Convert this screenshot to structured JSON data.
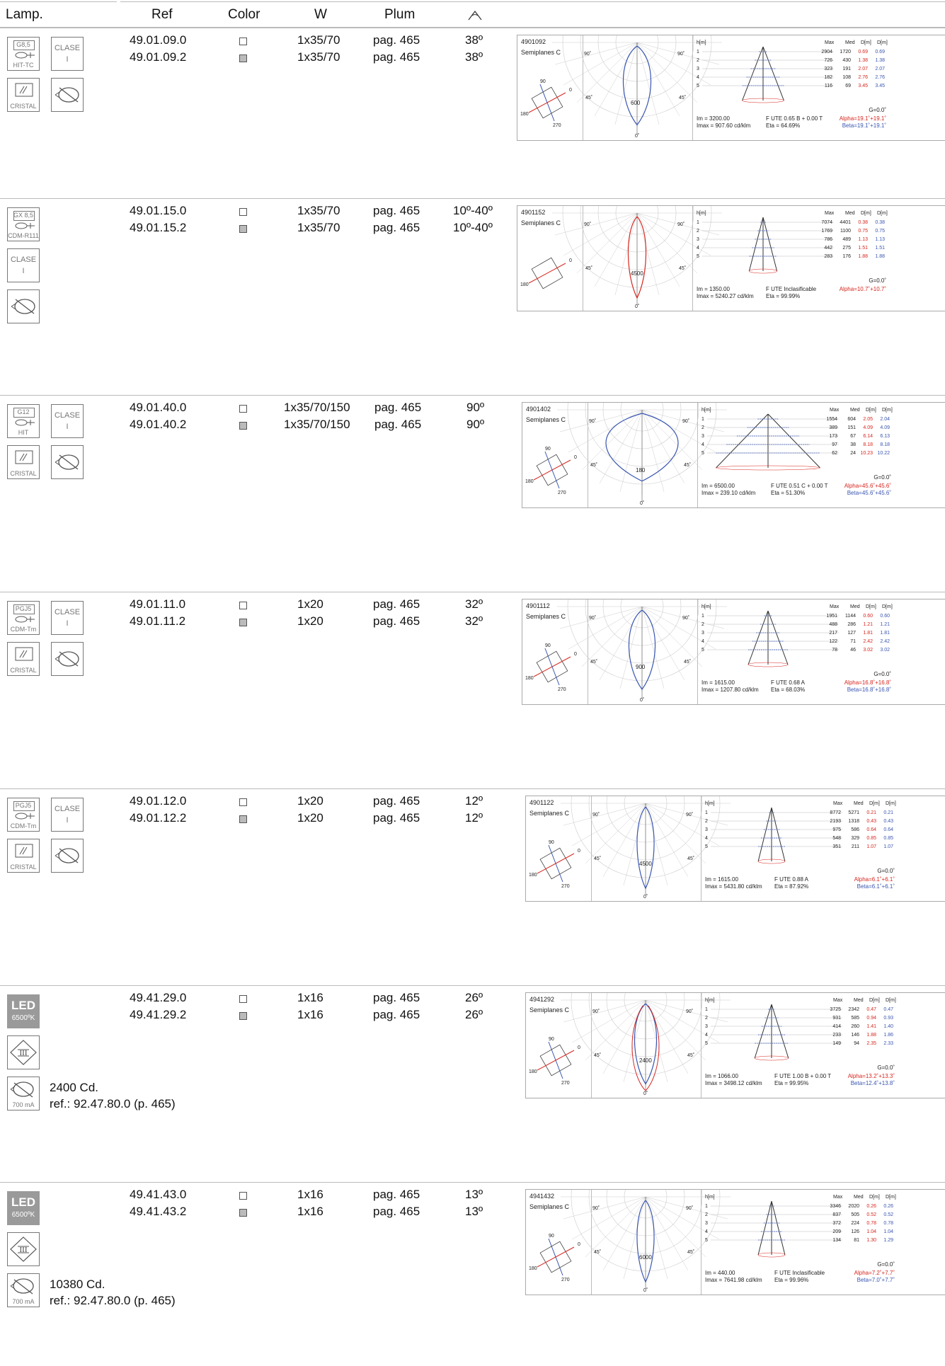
{
  "header": {
    "lamp": "Lamp.",
    "ref": "Ref",
    "color": "Color",
    "w": "W",
    "plum": "Plum",
    "angle_icon": "beam-angle-icon"
  },
  "colors": {
    "red": "#d7261e",
    "blue": "#3a56b0",
    "grey": "#9a9a9a"
  },
  "rows": [
    {
      "lamp_code": "G8,5",
      "lamp_type": "HIT-TC",
      "clase": [
        "CLASE",
        "I"
      ],
      "cristal": "CRISTAL",
      "driver": "",
      "refs": [
        "49.01.09.0",
        "49.01.09.2"
      ],
      "w": [
        "1x35/70",
        "1x35/70"
      ],
      "plum": [
        "pag. 465",
        "pag. 465"
      ],
      "angle": [
        "38º",
        "38º"
      ],
      "note": [
        "",
        ""
      ],
      "photo": {
        "id": "4901092",
        "system": "Semiplanes C",
        "dial": [
          "90",
          "0",
          "180",
          "270"
        ],
        "center": "600",
        "polar_labels": [
          "90˚",
          "90˚",
          "45˚",
          "45˚",
          "0˚"
        ],
        "table_head": [
          "h[m]",
          "Max",
          "Med",
          "D[m]",
          "D[m]"
        ],
        "table": [
          [
            "1",
            "2904",
            "1720",
            "0.69",
            "0.69"
          ],
          [
            "2",
            "726",
            "430",
            "1.38",
            "1.38"
          ],
          [
            "3",
            "323",
            "191",
            "2.07",
            "2.07"
          ],
          [
            "4",
            "182",
            "108",
            "2.76",
            "2.76"
          ],
          [
            "5",
            "116",
            "69",
            "3.45",
            "3.45"
          ]
        ],
        "g": "G=0.0˚",
        "im": "Im = 3200.00",
        "imax": "Imax = 907.60 cd/klm",
        "fute": "F UTE 0.65 B + 0.00 T",
        "eta": "Eta = 64.69%",
        "alpha": "Alpha=19.1˚+19.1˚",
        "beta": "Beta=19.1˚+19.1˚"
      }
    },
    {
      "lamp_code": "GX 8,5",
      "lamp_type": "CDM-R111",
      "clase": [
        "CLASE",
        "I"
      ],
      "cristal": "",
      "driver": "",
      "refs": [
        "49.01.15.0",
        "49.01.15.2"
      ],
      "w": [
        "1x35/70",
        "1x35/70"
      ],
      "plum": [
        "pag. 465",
        "pag. 465"
      ],
      "angle": [
        "10º-40º",
        "10º-40º"
      ],
      "note": [
        "",
        ""
      ],
      "photo": {
        "id": "4901152",
        "system": "Semiplanes C",
        "dial": [
          "",
          "0",
          "180",
          ""
        ],
        "center": "4500",
        "polar_labels": [
          "90˚",
          "90˚",
          "45˚",
          "45˚",
          "0˚"
        ],
        "table_head": [
          "h[m]",
          "Max",
          "Med",
          "D[m]",
          "D[m]"
        ],
        "table": [
          [
            "1",
            "7074",
            "4401",
            "0.38",
            "0.38"
          ],
          [
            "2",
            "1769",
            "1100",
            "0.75",
            "0.75"
          ],
          [
            "3",
            "786",
            "489",
            "1.13",
            "1.13"
          ],
          [
            "4",
            "442",
            "275",
            "1.51",
            "1.51"
          ],
          [
            "5",
            "283",
            "176",
            "1.88",
            "1.88"
          ]
        ],
        "g": "G=0.0˚",
        "im": "Im = 1350.00",
        "imax": "Imax = 5240.27 cd/klm",
        "fute": "F UTE Inclasificable",
        "eta": "Eta = 99.99%",
        "alpha": "Alpha=10.7˚+10.7˚",
        "beta": ""
      }
    },
    {
      "lamp_code": "G12",
      "lamp_type": "HIT",
      "clase": [
        "CLASE",
        "I"
      ],
      "cristal": "CRISTAL",
      "driver": "",
      "refs": [
        "49.01.40.0",
        "49.01.40.2"
      ],
      "w": [
        "1x35/70/150",
        "1x35/70/150"
      ],
      "plum": [
        "pag. 465",
        "pag. 465"
      ],
      "angle": [
        "90º",
        "90º"
      ],
      "note": [
        "",
        ""
      ],
      "photo": {
        "id": "4901402",
        "system": "Semiplanes C",
        "dial": [
          "90",
          "0",
          "180",
          "270"
        ],
        "center": "180",
        "polar_labels": [
          "90˚",
          "90˚",
          "45˚",
          "45˚",
          "0˚"
        ],
        "table_head": [
          "h[m]",
          "Max",
          "Med",
          "D[m]",
          "D[m]"
        ],
        "table": [
          [
            "1",
            "1554",
            "604",
            "2.05",
            "2.04"
          ],
          [
            "2",
            "389",
            "151",
            "4.09",
            "4.09"
          ],
          [
            "3",
            "173",
            "67",
            "6.14",
            "6.13"
          ],
          [
            "4",
            "97",
            "38",
            "8.18",
            "8.18"
          ],
          [
            "5",
            "62",
            "24",
            "10.23",
            "10.22"
          ]
        ],
        "g": "G=0.0˚",
        "im": "Im = 6500.00",
        "imax": "Imax = 239.10 cd/klm",
        "fute": "F UTE 0.51 C + 0.00 T",
        "eta": "Eta = 51.30%",
        "alpha": "Alpha=45.6˚+45.6˚",
        "beta": "Beta=45.6˚+45.6˚"
      }
    },
    {
      "lamp_code": "PGJ5",
      "lamp_type": "CDM-Tm",
      "clase": [
        "CLASE",
        "I"
      ],
      "cristal": "CRISTAL",
      "driver": "",
      "refs": [
        "49.01.11.0",
        "49.01.11.2"
      ],
      "w": [
        "1x20",
        "1x20"
      ],
      "plum": [
        "pag. 465",
        "pag. 465"
      ],
      "angle": [
        "32º",
        "32º"
      ],
      "note": [
        "",
        ""
      ],
      "photo": {
        "id": "4901112",
        "system": "Semiplanes C",
        "dial": [
          "90",
          "0",
          "180",
          "270"
        ],
        "center": "900",
        "polar_labels": [
          "90˚",
          "90˚",
          "45˚",
          "45˚",
          "0˚"
        ],
        "table_head": [
          "h[m]",
          "Max",
          "Med",
          "D[m]",
          "D[m]"
        ],
        "table": [
          [
            "1",
            "1951",
            "1144",
            "0.60",
            "0.60"
          ],
          [
            "2",
            "488",
            "286",
            "1.21",
            "1.21"
          ],
          [
            "3",
            "217",
            "127",
            "1.81",
            "1.81"
          ],
          [
            "4",
            "122",
            "71",
            "2.42",
            "2.42"
          ],
          [
            "5",
            "78",
            "46",
            "3.02",
            "3.02"
          ]
        ],
        "g": "G=0.0˚",
        "im": "Im = 1615.00",
        "imax": "Imax = 1207.80 cd/klm",
        "fute": "F UTE 0.68 A",
        "eta": "Eta = 68.03%",
        "alpha": "Alpha=16.8˚+16.8˚",
        "beta": "Beta=16.8˚+16.8˚"
      }
    },
    {
      "lamp_code": "PGJ5",
      "lamp_type": "CDM-Tm",
      "clase": [
        "CLASE",
        "I"
      ],
      "cristal": "CRISTAL",
      "driver": "",
      "refs": [
        "49.01.12.0",
        "49.01.12.2"
      ],
      "w": [
        "1x20",
        "1x20"
      ],
      "plum": [
        "pag. 465",
        "pag. 465"
      ],
      "angle": [
        "12º",
        "12º"
      ],
      "note": [
        "",
        ""
      ],
      "photo": {
        "id": "4901122",
        "system": "Semiplanes C",
        "dial": [
          "90",
          "0",
          "180",
          "270"
        ],
        "center": "4500",
        "polar_labels": [
          "90˚",
          "90˚",
          "45˚",
          "45˚",
          "0˚"
        ],
        "table_head": [
          "h[m]",
          "Max",
          "Med",
          "D[m]",
          "D[m]"
        ],
        "table": [
          [
            "1",
            "8772",
            "5271",
            "0.21",
            "0.21"
          ],
          [
            "2",
            "2193",
            "1318",
            "0.43",
            "0.43"
          ],
          [
            "3",
            "975",
            "586",
            "0.64",
            "0.64"
          ],
          [
            "4",
            "548",
            "329",
            "0.85",
            "0.85"
          ],
          [
            "5",
            "351",
            "211",
            "1.07",
            "1.07"
          ]
        ],
        "g": "G=0.0˚",
        "im": "Im = 1615.00",
        "imax": "Imax = 5431.80 cd/klm",
        "fute": "F UTE 0.88 A",
        "eta": "Eta = 87.92%",
        "alpha": "Alpha=6.1˚+6.1˚",
        "beta": "Beta=6.1˚+6.1˚"
      }
    },
    {
      "lamp_code": "LED",
      "lamp_type": "6500ºK",
      "clase": [
        "",
        ""
      ],
      "cristal": "",
      "driver": "700 mA",
      "refs": [
        "49.41.29.0",
        "49.41.29.2"
      ],
      "w": [
        "1x16",
        "1x16"
      ],
      "plum": [
        "pag. 465",
        "pag. 465"
      ],
      "angle": [
        "26º",
        "26º"
      ],
      "note": [
        "2400 Cd.",
        "ref.: 92.47.80.0 (p. 465)"
      ],
      "photo": {
        "id": "4941292",
        "system": "Semiplanes C",
        "dial": [
          "90",
          "0",
          "180",
          "270"
        ],
        "center": "2400",
        "polar_labels": [
          "90˚",
          "90˚",
          "45˚",
          "45˚",
          "0˚"
        ],
        "table_head": [
          "h[m]",
          "Max",
          "Med",
          "D[m]",
          "D[m]"
        ],
        "table": [
          [
            "1",
            "3725",
            "2342",
            "0.47",
            "0.47"
          ],
          [
            "2",
            "931",
            "585",
            "0.94",
            "0.93"
          ],
          [
            "3",
            "414",
            "260",
            "1.41",
            "1.40"
          ],
          [
            "4",
            "233",
            "146",
            "1.88",
            "1.86"
          ],
          [
            "5",
            "149",
            "94",
            "2.35",
            "2.33"
          ]
        ],
        "g": "G=0.0˚",
        "im": "Im = 1066.00",
        "imax": "Imax = 3498.12 cd/klm",
        "fute": "F UTE 1.00 B + 0.00 T",
        "eta": "Eta = 99.95%",
        "alpha": "Alpha=13.2˚+13.3˚",
        "beta": "Beta=12.4˚+13.8˚"
      }
    },
    {
      "lamp_code": "LED",
      "lamp_type": "6500ºK",
      "clase": [
        "",
        ""
      ],
      "cristal": "",
      "driver": "700 mA",
      "refs": [
        "49.41.43.0",
        "49.41.43.2"
      ],
      "w": [
        "1x16",
        "1x16"
      ],
      "plum": [
        "pag. 465",
        "pag. 465"
      ],
      "angle": [
        "13º",
        "13º"
      ],
      "note": [
        "10380 Cd.",
        "ref.: 92.47.80.0 (p. 465)"
      ],
      "photo": {
        "id": "4941432",
        "system": "Semiplanes C",
        "dial": [
          "90",
          "0",
          "180",
          "270"
        ],
        "center": "6000",
        "polar_labels": [
          "90˚",
          "90˚",
          "45˚",
          "45˚",
          "0˚"
        ],
        "table_head": [
          "h[m]",
          "Max",
          "Med",
          "D[m]",
          "D[m]"
        ],
        "table": [
          [
            "1",
            "3346",
            "2020",
            "0.26",
            "0.26"
          ],
          [
            "2",
            "837",
            "505",
            "0.52",
            "0.52"
          ],
          [
            "3",
            "372",
            "224",
            "0.78",
            "0.78"
          ],
          [
            "4",
            "209",
            "126",
            "1.04",
            "1.04"
          ],
          [
            "5",
            "134",
            "81",
            "1.30",
            "1.29"
          ]
        ],
        "g": "G=0.0˚",
        "im": "Im = 440.00",
        "imax": "Imax = 7641.98 cd/klm",
        "fute": "F UTE Inclasificable",
        "eta": "Eta = 99.96%",
        "alpha": "Alpha=7.2˚+7.7˚",
        "beta": "Beta=7.0˚+7.7˚"
      }
    }
  ]
}
